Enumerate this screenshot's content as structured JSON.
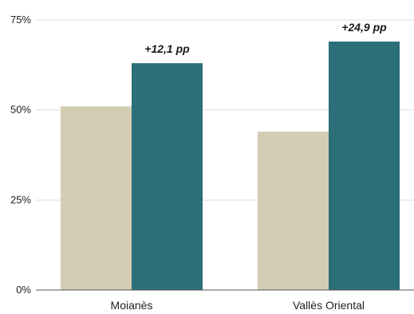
{
  "chart_data": {
    "type": "bar",
    "categories": [
      "Moianès",
      "Vallès Oriental"
    ],
    "series": [
      {
        "values": [
          51,
          44
        ],
        "color": "#d3cdb3"
      },
      {
        "values": [
          63,
          69
        ],
        "color": "#2b6f78"
      }
    ],
    "annotations": [
      "+12,1 pp",
      "+24,9 pp"
    ],
    "ylim": [
      0,
      75
    ],
    "yticks": [
      {
        "value": 0,
        "label": "0%"
      },
      {
        "value": 25,
        "label": "25%"
      },
      {
        "value": 50,
        "label": "50%"
      },
      {
        "value": 75,
        "label": "75%"
      }
    ],
    "grid": true,
    "gridline_color": "#dddddd",
    "axis_color": "#555555"
  }
}
